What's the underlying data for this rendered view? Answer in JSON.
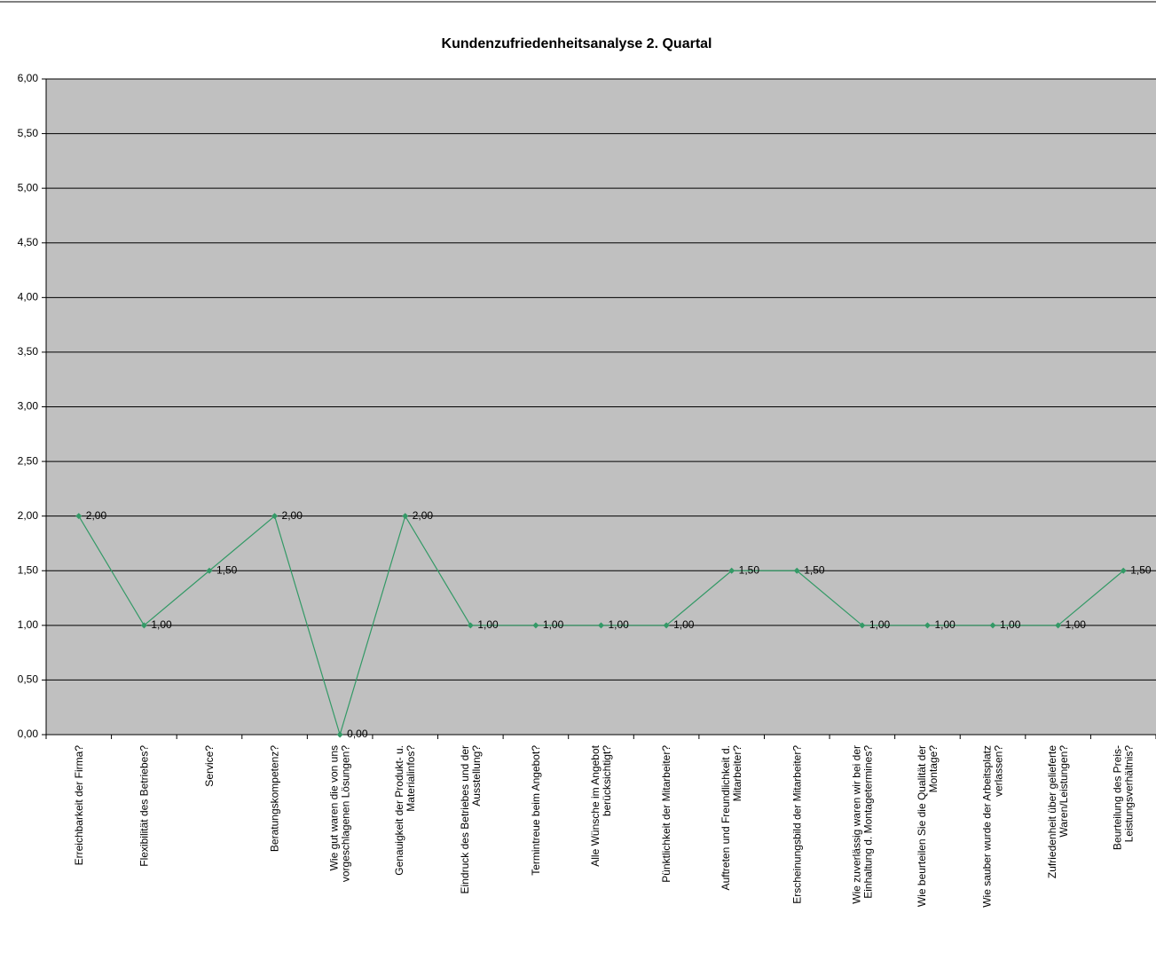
{
  "chart_data": {
    "type": "line",
    "title": "Kundenzufriedenheitsanalyse 2. Quartal",
    "categories": [
      "Erreichbarkeit der Firma?",
      "Flexibilität des Betriebes?",
      "Service?",
      "Beratungskompetenz?",
      "Wie gut waren die von uns vorgeschlagenen Lösungen?",
      "Genauigkeit der Produkt- u. Materialinfos?",
      "Eindruck des Betriebes und der Ausstellung?",
      "Termintreue beim Angebot?",
      "Alle Wünsche im Angebot berücksichtigt?",
      "Pünktlichkeit der Mitarbeiter?",
      "Auftreten und Freundlichkeit d. Mitarbeiter?",
      "Erscheinungsbild der Mitarbeiter?",
      "Wie zuverlässig waren wir bei der Einhaltung d. Montagetermines?",
      "Wie beurteilen Sie die Qualität der Montage?",
      "Wie sauber wurde der Arbeitsplatz verlassen?",
      "Zufriedenheit über gelieferte Waren/Leistungen?",
      "Beurteilung des Preis-Leistungsverhältnis?"
    ],
    "values": [
      2,
      1,
      1.5,
      2,
      0,
      2,
      1,
      1,
      1,
      1,
      1.5,
      1.5,
      1,
      1,
      1,
      1,
      1.5
    ],
    "value_labels": [
      "2,00",
      "1,00",
      "1,50",
      "2,00",
      "0,00",
      "2,00",
      "1,00",
      "1,00",
      "1,00",
      "1,00",
      "1,50",
      "1,50",
      "1,00",
      "1,00",
      "1,00",
      "1,00",
      "1,50"
    ],
    "color": "#339966",
    "ylim": [
      0,
      6
    ],
    "yticks": [
      {
        "value": 0,
        "label": "0,00"
      },
      {
        "value": 0.5,
        "label": "0,50"
      },
      {
        "value": 1,
        "label": "1,00"
      },
      {
        "value": 1.5,
        "label": "1,50"
      },
      {
        "value": 2,
        "label": "2,00"
      },
      {
        "value": 2.5,
        "label": "2,50"
      },
      {
        "value": 3,
        "label": "3,00"
      },
      {
        "value": 3.5,
        "label": "3,50"
      },
      {
        "value": 4,
        "label": "4,00"
      },
      {
        "value": 4.5,
        "label": "4,50"
      },
      {
        "value": 5,
        "label": "5,00"
      },
      {
        "value": 5.5,
        "label": "5,50"
      },
      {
        "value": 6,
        "label": "6,00"
      }
    ],
    "grid": true
  }
}
